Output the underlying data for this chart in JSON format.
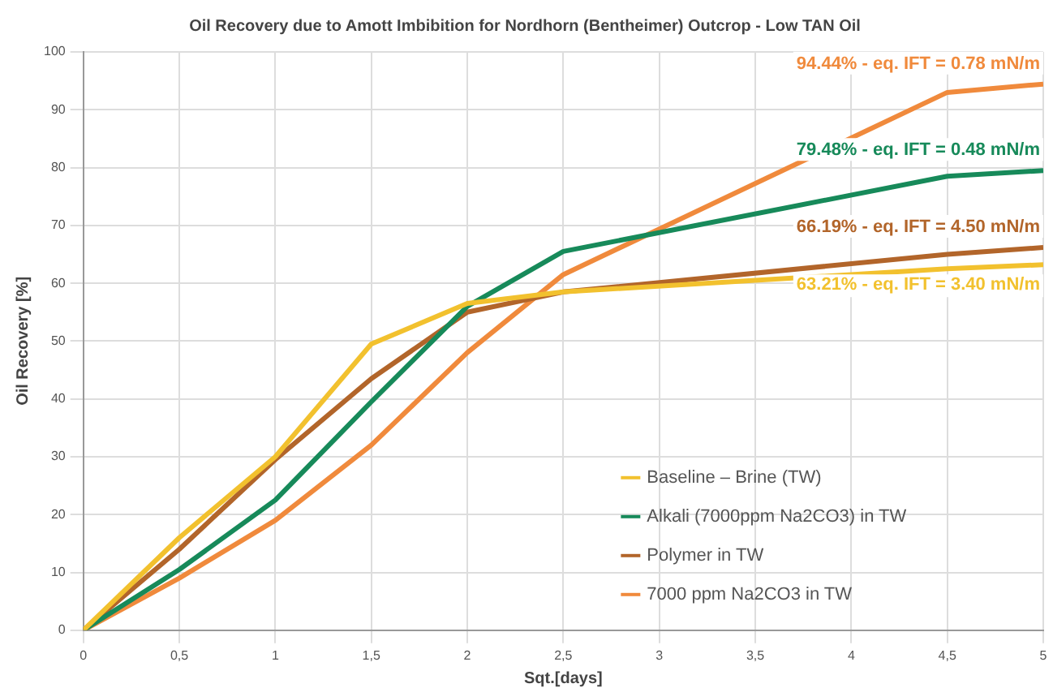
{
  "chart_data": {
    "type": "line",
    "title": "Oil Recovery due to Amott Imbibition for Nordhorn (Bentheimer) Outcrop - Low TAN Oil",
    "xlabel": "Sqt.[days]",
    "ylabel": "Oil Recovery [%]",
    "x": [
      0,
      0.5,
      1,
      1.5,
      2,
      2.5,
      4.5,
      5
    ],
    "series": [
      {
        "name": "Baseline – Brine (TW)",
        "color": "#f2c12e",
        "values": [
          0,
          16,
          30,
          49.5,
          56.5,
          58.5,
          62.5,
          63.21
        ]
      },
      {
        "name": "Alkali (7000ppm Na2CO3) in TW",
        "color": "#178a5a",
        "values": [
          0,
          10.5,
          22.5,
          39.5,
          56,
          65.5,
          78.5,
          79.48
        ]
      },
      {
        "name": "Polymer in TW",
        "color": "#b2652a",
        "values": [
          0,
          14,
          29.5,
          43.5,
          55,
          58.5,
          65,
          66.19
        ]
      },
      {
        "name": "7000 ppm Na2CO3 in TW",
        "color": "#f08a3c",
        "values": [
          0,
          9,
          19,
          32,
          48,
          61.5,
          93,
          94.44
        ]
      }
    ],
    "annotations": [
      "63.21% - eq. IFT = 3.40 mN/m",
      "79.48% - eq. IFT = 0.48 mN/m",
      "66.19% - eq. IFT = 4.50 mN/m",
      "94.44% - eq. IFT = 0.78 mN/m"
    ],
    "xlim": [
      0,
      5
    ],
    "xticks": [
      0,
      {
        "value": 0.5,
        "label": "0,5"
      },
      1,
      {
        "value": 1.5,
        "label": "1,5"
      },
      2,
      {
        "value": 2.5,
        "label": "2,5"
      },
      3,
      {
        "value": 3.5,
        "label": "3,5"
      },
      4,
      {
        "value": 4.5,
        "label": "4,5"
      },
      5
    ],
    "ylim": [
      0,
      100
    ],
    "yticks": [
      0,
      10,
      20,
      30,
      40,
      50,
      60,
      70,
      80,
      90,
      100
    ],
    "grid": true,
    "legend": "bottom right",
    "line_style": "solid"
  }
}
